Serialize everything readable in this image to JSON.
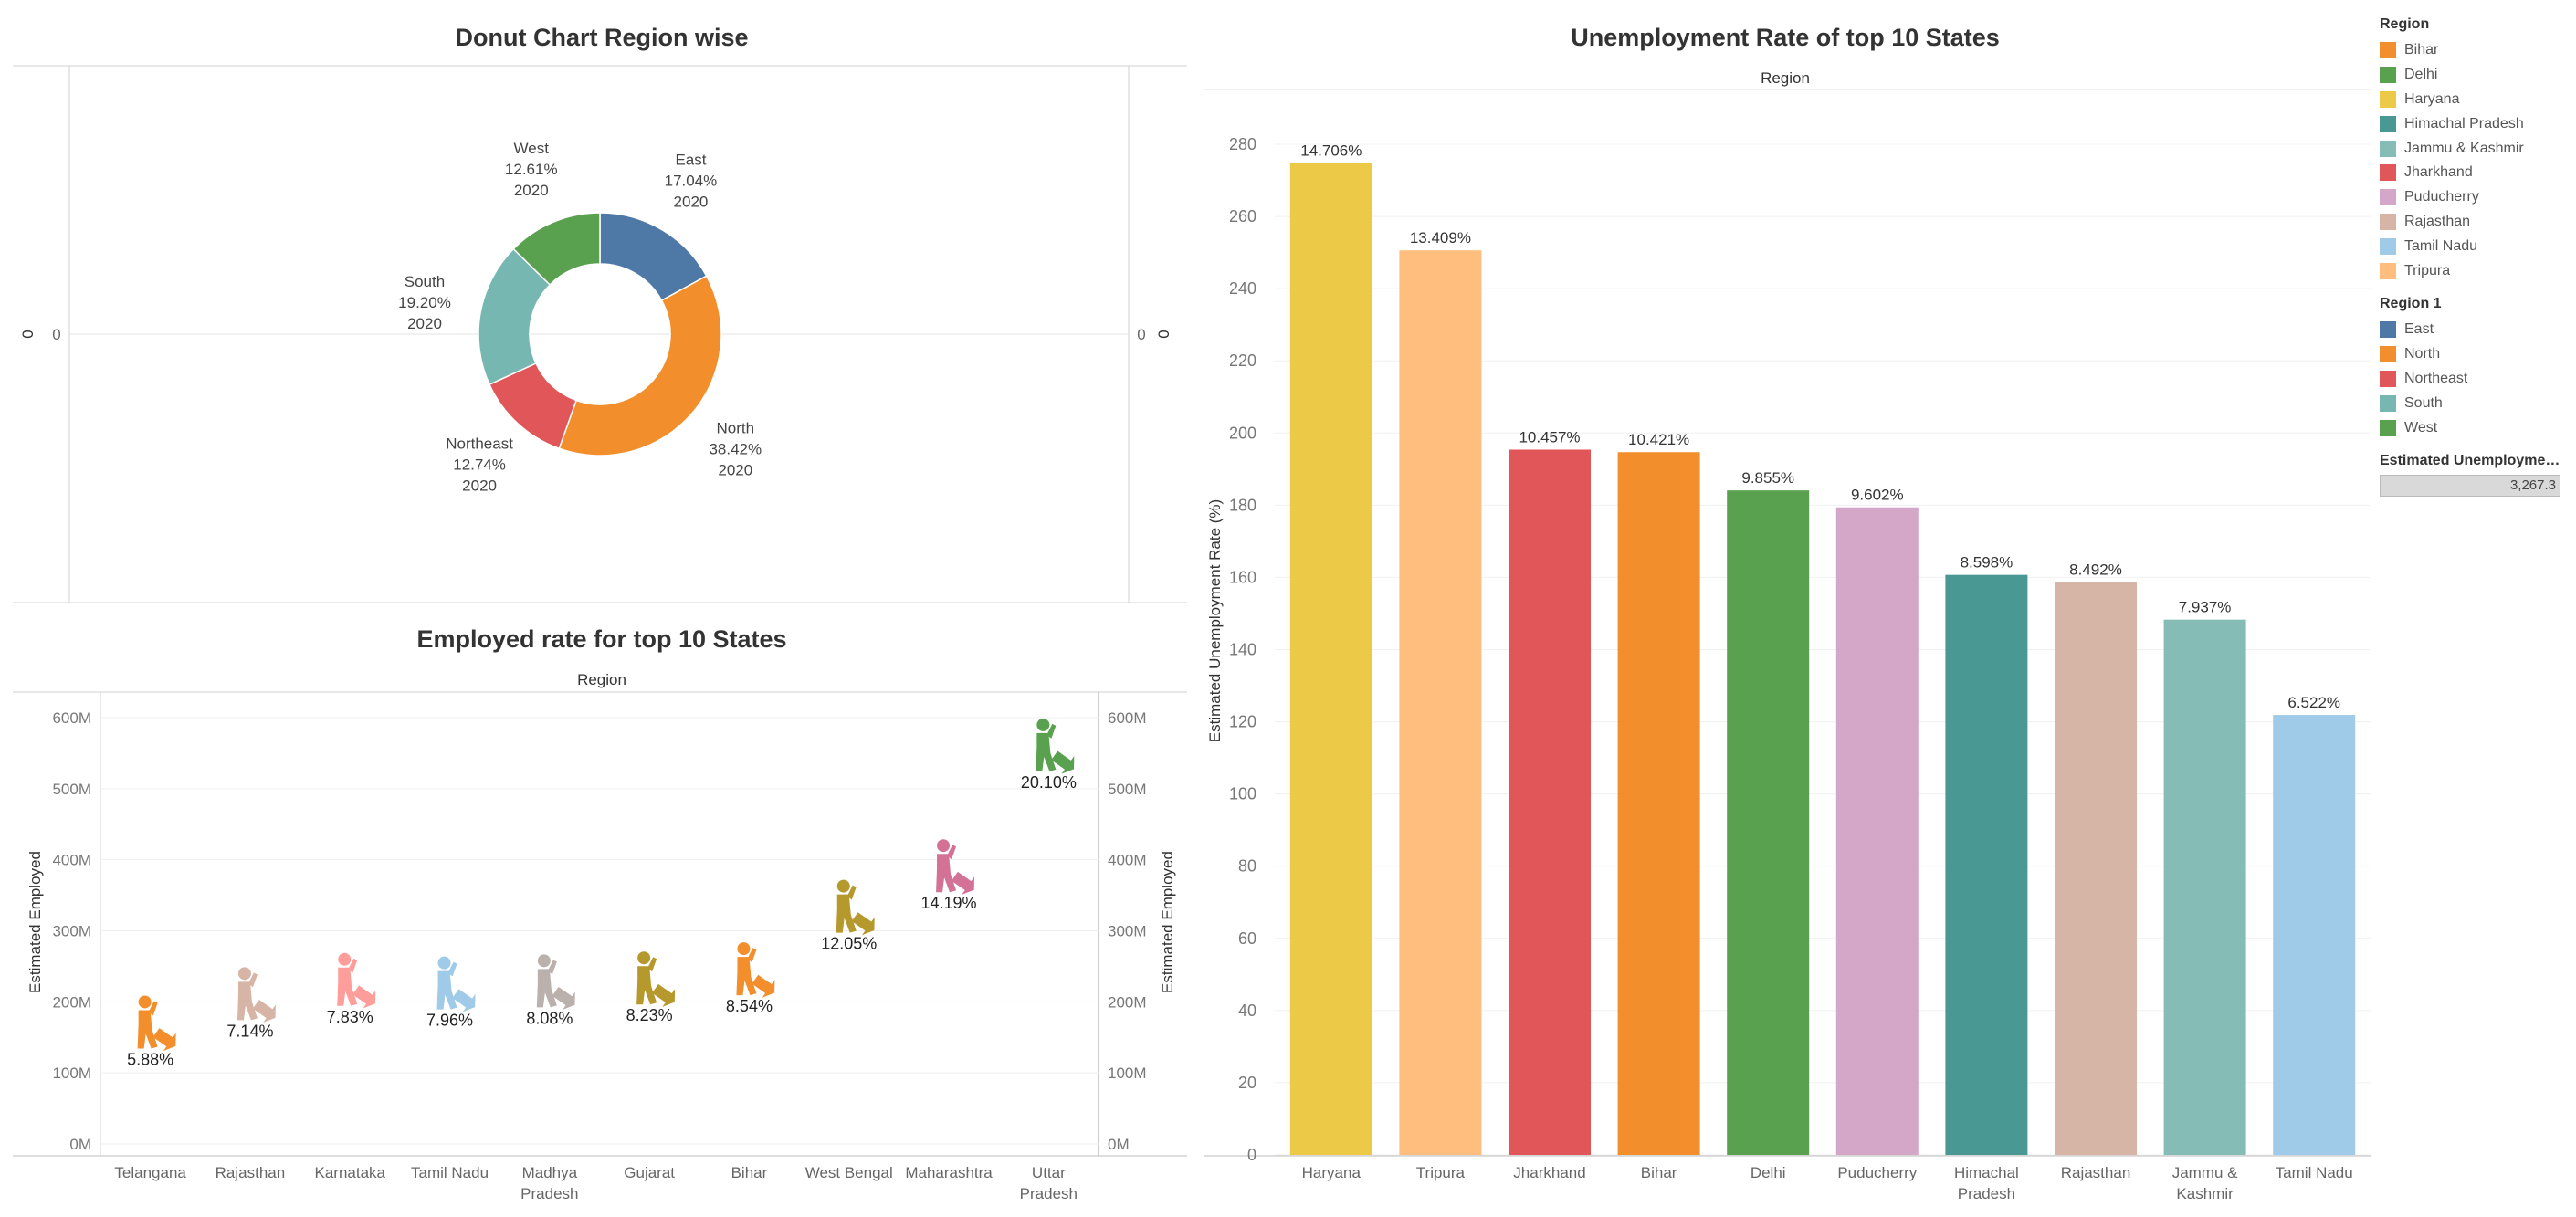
{
  "donut": {
    "title": "Donut Chart Region wise",
    "left_axis_tick": "0",
    "left_axis_label": "0",
    "right_axis_tick": "0",
    "right_axis_label": "0"
  },
  "employed": {
    "title": "Employed rate for top 10 States",
    "header": "Region",
    "ylabel": "Estimated Employed"
  },
  "unemployment": {
    "title": "Unemployment Rate of top 10 States",
    "header": "Region",
    "ylabel": "Estimated Unemployment Rate (%)"
  },
  "legend": {
    "region_title": "Region",
    "region_items": [
      {
        "label": "Bihar",
        "color": "#f28e2b"
      },
      {
        "label": "Delhi",
        "color": "#59a14f"
      },
      {
        "label": "Haryana",
        "color": "#edc948"
      },
      {
        "label": "Himachal Pradesh",
        "color": "#499894"
      },
      {
        "label": "Jammu & Kashmir",
        "color": "#86bcb6"
      },
      {
        "label": "Jharkhand",
        "color": "#e15759"
      },
      {
        "label": "Puducherry",
        "color": "#d4a6c8"
      },
      {
        "label": "Rajasthan",
        "color": "#d7b5a6"
      },
      {
        "label": "Tamil Nadu",
        "color": "#a0cbe8"
      },
      {
        "label": "Tripura",
        "color": "#ffbe7d"
      }
    ],
    "region1_title": "Region 1",
    "region1_items": [
      {
        "label": "East",
        "color": "#4e79a7"
      },
      {
        "label": "North",
        "color": "#f28e2b"
      },
      {
        "label": "Northeast",
        "color": "#e15759"
      },
      {
        "label": "South",
        "color": "#76b7b2"
      },
      {
        "label": "West",
        "color": "#59a14f"
      }
    ],
    "size_title": "Estimated Unemploymen..",
    "size_value": "3,267.3"
  },
  "chart_data": [
    {
      "type": "pie",
      "title": "Donut Chart Region wise",
      "slices": [
        {
          "name": "East",
          "value": 17.04,
          "label": "17.04%",
          "year": "2020",
          "color": "#4e79a7"
        },
        {
          "name": "North",
          "value": 38.42,
          "label": "38.42%",
          "year": "2020",
          "color": "#f28e2b"
        },
        {
          "name": "Northeast",
          "value": 12.74,
          "label": "12.74%",
          "year": "2020",
          "color": "#e15759"
        },
        {
          "name": "South",
          "value": 19.2,
          "label": "19.20%",
          "year": "2020",
          "color": "#76b7b2"
        },
        {
          "name": "West",
          "value": 12.61,
          "label": "12.61%",
          "year": "2020",
          "color": "#59a14f"
        }
      ]
    },
    {
      "type": "scatter",
      "title": "Employed rate for top 10 States",
      "ylabel": "Estimated Employed",
      "ylim": [
        0,
        640000000
      ],
      "yticks": [
        0,
        100000000,
        200000000,
        300000000,
        400000000,
        500000000,
        600000000
      ],
      "ytick_labels": [
        "0M",
        "100M",
        "200M",
        "300M",
        "400M",
        "500M",
        "600M"
      ],
      "categories": [
        [
          "Telangana"
        ],
        [
          "Rajasthan"
        ],
        [
          "Karnataka"
        ],
        [
          "Tamil Nadu"
        ],
        [
          "Madhya",
          "Pradesh"
        ],
        [
          "Gujarat"
        ],
        [
          "Bihar"
        ],
        [
          "West Bengal"
        ],
        [
          "Maharashtra"
        ],
        [
          "Uttar",
          "Pradesh"
        ]
      ],
      "values": [
        160000000,
        200000000,
        220000000,
        215000000,
        218000000,
        222000000,
        235000000,
        323000000,
        380000000,
        550000000
      ],
      "labels": [
        "5.88%",
        "7.14%",
        "7.83%",
        "7.96%",
        "8.08%",
        "8.23%",
        "8.54%",
        "12.05%",
        "14.19%",
        "20.10%"
      ],
      "colors": [
        "#f28e2b",
        "#d7b5a6",
        "#ff9d9a",
        "#a0cbe8",
        "#bab0ac",
        "#b6992d",
        "#f28e2b",
        "#b6992d",
        "#d37295",
        "#59a14f"
      ]
    },
    {
      "type": "bar",
      "title": "Unemployment Rate of top 10 States",
      "ylabel": "Estimated Unemployment Rate (%)",
      "ylim": [
        0,
        285
      ],
      "yticks": [
        0,
        20,
        40,
        60,
        80,
        100,
        120,
        140,
        160,
        180,
        200,
        220,
        240,
        260,
        280
      ],
      "categories": [
        [
          "Haryana"
        ],
        [
          "Tripura"
        ],
        [
          "Jharkhand"
        ],
        [
          "Bihar"
        ],
        [
          "Delhi"
        ],
        [
          "Puducherry"
        ],
        [
          "Himachal",
          "Pradesh"
        ],
        [
          "Rajasthan"
        ],
        [
          "Jammu &",
          "Kashmir"
        ],
        [
          "Tamil Nadu"
        ]
      ],
      "values": [
        274.8,
        250.6,
        195.4,
        194.7,
        184.1,
        179.4,
        160.7,
        158.7,
        148.3,
        121.9
      ],
      "labels": [
        "14.706%",
        "13.409%",
        "10.457%",
        "10.421%",
        "9.855%",
        "9.602%",
        "8.598%",
        "8.492%",
        "7.937%",
        "6.522%"
      ],
      "colors": [
        "#edc948",
        "#ffbe7d",
        "#e15759",
        "#f28e2b",
        "#59a14f",
        "#d4a6c8",
        "#499894",
        "#d7b5a6",
        "#86bcb6",
        "#a0cbe8"
      ]
    }
  ]
}
